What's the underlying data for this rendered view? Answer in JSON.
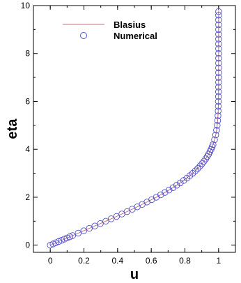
{
  "chart_data": {
    "type": "line",
    "title": "",
    "xlabel": "u",
    "ylabel": "eta",
    "xlim": [
      -0.1,
      1.1
    ],
    "ylim": [
      -0.3,
      10.0
    ],
    "x_ticks": [
      0,
      0.2,
      0.4,
      0.6,
      0.8,
      1
    ],
    "x_tick_labels": [
      "0",
      "0.2",
      "0.4",
      "0.6",
      "0.8",
      "1"
    ],
    "y_ticks": [
      0,
      2,
      4,
      6,
      8,
      10
    ],
    "y_tick_labels": [
      "0",
      "2",
      "4",
      "6",
      "8",
      "10"
    ],
    "grid": false,
    "legend_position": "top-left",
    "series": [
      {
        "name": "Blasius",
        "style": "line",
        "color": "#c07080",
        "points": [
          [
            0,
            0
          ],
          [
            0.0664,
            0.2
          ],
          [
            0.1328,
            0.4
          ],
          [
            0.1989,
            0.6
          ],
          [
            0.2647,
            0.8
          ],
          [
            0.3298,
            1.0
          ],
          [
            0.3938,
            1.2
          ],
          [
            0.4563,
            1.4
          ],
          [
            0.5168,
            1.6
          ],
          [
            0.5748,
            1.8
          ],
          [
            0.6298,
            2.0
          ],
          [
            0.6813,
            2.2
          ],
          [
            0.729,
            2.4
          ],
          [
            0.7725,
            2.6
          ],
          [
            0.8115,
            2.8
          ],
          [
            0.8461,
            3.0
          ],
          [
            0.8761,
            3.2
          ],
          [
            0.9018,
            3.4
          ],
          [
            0.9233,
            3.6
          ],
          [
            0.9411,
            3.8
          ],
          [
            0.9555,
            4.0
          ],
          [
            0.967,
            4.2
          ],
          [
            0.9759,
            4.4
          ],
          [
            0.9827,
            4.6
          ],
          [
            0.9878,
            4.8
          ],
          [
            0.9916,
            5.0
          ],
          [
            0.9943,
            5.2
          ],
          [
            0.9962,
            5.4
          ],
          [
            0.9975,
            5.6
          ],
          [
            0.9984,
            5.8
          ],
          [
            0.999,
            6.0
          ],
          [
            0.9995,
            6.4
          ],
          [
            0.9998,
            7.0
          ],
          [
            1.0,
            8.0
          ],
          [
            1.0,
            9.0
          ],
          [
            1.0,
            9.8
          ]
        ]
      },
      {
        "name": "Numerical",
        "style": "marker-circle",
        "color": "#5050c8",
        "points": [
          [
            0.0,
            0.0
          ],
          [
            0.0166,
            0.05
          ],
          [
            0.0332,
            0.1
          ],
          [
            0.0498,
            0.15
          ],
          [
            0.0664,
            0.2
          ],
          [
            0.083,
            0.25
          ],
          [
            0.0996,
            0.3
          ],
          [
            0.1162,
            0.35
          ],
          [
            0.1328,
            0.4
          ],
          [
            0.1659,
            0.5
          ],
          [
            0.1989,
            0.6
          ],
          [
            0.2318,
            0.7
          ],
          [
            0.2647,
            0.8
          ],
          [
            0.2973,
            0.9
          ],
          [
            0.3298,
            1.0
          ],
          [
            0.3619,
            1.1
          ],
          [
            0.3938,
            1.2
          ],
          [
            0.4252,
            1.3
          ],
          [
            0.4563,
            1.4
          ],
          [
            0.4868,
            1.5
          ],
          [
            0.5168,
            1.6
          ],
          [
            0.5461,
            1.7
          ],
          [
            0.5748,
            1.8
          ],
          [
            0.6027,
            1.9
          ],
          [
            0.6298,
            2.0
          ],
          [
            0.656,
            2.1
          ],
          [
            0.6813,
            2.2
          ],
          [
            0.7056,
            2.3
          ],
          [
            0.729,
            2.4
          ],
          [
            0.7512,
            2.5
          ],
          [
            0.7725,
            2.6
          ],
          [
            0.7925,
            2.7
          ],
          [
            0.8115,
            2.8
          ],
          [
            0.8293,
            2.9
          ],
          [
            0.8461,
            3.0
          ],
          [
            0.8616,
            3.1
          ],
          [
            0.8761,
            3.2
          ],
          [
            0.8894,
            3.3
          ],
          [
            0.9018,
            3.4
          ],
          [
            0.913,
            3.5
          ],
          [
            0.9233,
            3.6
          ],
          [
            0.9327,
            3.7
          ],
          [
            0.9411,
            3.8
          ],
          [
            0.9487,
            3.9
          ],
          [
            0.9555,
            4.0
          ],
          [
            0.9615,
            4.1
          ],
          [
            0.967,
            4.2
          ],
          [
            0.9759,
            4.4
          ],
          [
            0.9827,
            4.6
          ],
          [
            0.9878,
            4.8
          ],
          [
            0.9916,
            5.0
          ],
          [
            0.9943,
            5.2
          ],
          [
            0.9962,
            5.4
          ],
          [
            0.9975,
            5.6
          ],
          [
            0.9984,
            5.8
          ],
          [
            0.999,
            6.0
          ],
          [
            0.9994,
            6.2
          ],
          [
            0.9996,
            6.4
          ],
          [
            0.9998,
            6.6
          ],
          [
            0.9999,
            6.8
          ],
          [
            1.0,
            7.0
          ],
          [
            1.0,
            7.2
          ],
          [
            1.0,
            7.4
          ],
          [
            1.0,
            7.6
          ],
          [
            1.0,
            7.8
          ],
          [
            1.0,
            8.0
          ],
          [
            1.0,
            8.2
          ],
          [
            1.0,
            8.4
          ],
          [
            1.0,
            8.6
          ],
          [
            1.0,
            8.8
          ],
          [
            1.0,
            9.0
          ],
          [
            1.0,
            9.2
          ],
          [
            1.0,
            9.4
          ],
          [
            1.0,
            9.6
          ],
          [
            1.0,
            9.75
          ]
        ]
      }
    ]
  }
}
